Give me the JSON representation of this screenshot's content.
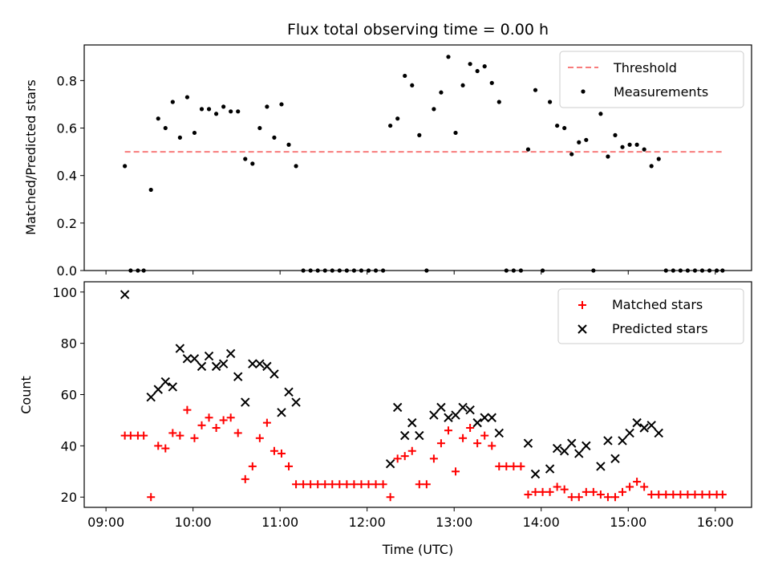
{
  "chart_data": [
    {
      "type": "scatter",
      "title": "Flux total observing time = 0.00 h",
      "xlabel": "",
      "ylabel": "Matched/Predicted stars",
      "xlim_minutes": [
        525,
        985
      ],
      "ylim": [
        0,
        0.95
      ],
      "yticks": [
        0.0,
        0.2,
        0.4,
        0.6,
        0.8
      ],
      "yticklabels": [
        "0.0",
        "0.2",
        "0.4",
        "0.6",
        "0.8"
      ],
      "legend_position": "upper right",
      "threshold": {
        "name": "Threshold",
        "value": 0.5,
        "x_range": [
          "09:13",
          "16:05"
        ],
        "color": "#f87c7c",
        "style": "dashed"
      },
      "series": [
        {
          "name": "Measurements",
          "color": "#000000",
          "marker": "dot",
          "points": [
            [
              "09:13",
              0.44
            ],
            [
              "09:17",
              0.0
            ],
            [
              "09:22",
              0.0
            ],
            [
              "09:26",
              0.0
            ],
            [
              "09:31",
              0.34
            ],
            [
              "09:36",
              0.64
            ],
            [
              "09:41",
              0.6
            ],
            [
              "09:46",
              0.71
            ],
            [
              "09:51",
              0.56
            ],
            [
              "09:56",
              0.73
            ],
            [
              "10:01",
              0.58
            ],
            [
              "10:06",
              0.68
            ],
            [
              "10:11",
              0.68
            ],
            [
              "10:16",
              0.66
            ],
            [
              "10:21",
              0.69
            ],
            [
              "10:26",
              0.67
            ],
            [
              "10:31",
              0.67
            ],
            [
              "10:36",
              0.47
            ],
            [
              "10:41",
              0.45
            ],
            [
              "10:46",
              0.6
            ],
            [
              "10:51",
              0.69
            ],
            [
              "10:56",
              0.56
            ],
            [
              "11:01",
              0.7
            ],
            [
              "11:06",
              0.53
            ],
            [
              "11:11",
              0.44
            ],
            [
              "11:16",
              0.0
            ],
            [
              "11:21",
              0.0
            ],
            [
              "11:26",
              0.0
            ],
            [
              "11:31",
              0.0
            ],
            [
              "11:36",
              0.0
            ],
            [
              "11:41",
              0.0
            ],
            [
              "11:46",
              0.0
            ],
            [
              "11:51",
              0.0
            ],
            [
              "11:56",
              0.0
            ],
            [
              "12:01",
              0.0
            ],
            [
              "12:06",
              0.0
            ],
            [
              "12:11",
              0.0
            ],
            [
              "12:16",
              0.61
            ],
            [
              "12:21",
              0.64
            ],
            [
              "12:26",
              0.82
            ],
            [
              "12:31",
              0.78
            ],
            [
              "12:36",
              0.57
            ],
            [
              "12:41",
              0.0
            ],
            [
              "12:46",
              0.68
            ],
            [
              "12:51",
              0.75
            ],
            [
              "12:56",
              0.9
            ],
            [
              "13:01",
              0.58
            ],
            [
              "13:06",
              0.78
            ],
            [
              "13:11",
              0.87
            ],
            [
              "13:16",
              0.84
            ],
            [
              "13:21",
              0.86
            ],
            [
              "13:26",
              0.79
            ],
            [
              "13:31",
              0.71
            ],
            [
              "13:36",
              0.0
            ],
            [
              "13:41",
              0.0
            ],
            [
              "13:46",
              0.0
            ],
            [
              "13:51",
              0.51
            ],
            [
              "13:56",
              0.76
            ],
            [
              "14:01",
              0.0
            ],
            [
              "14:06",
              0.71
            ],
            [
              "14:11",
              0.61
            ],
            [
              "14:16",
              0.6
            ],
            [
              "14:21",
              0.49
            ],
            [
              "14:26",
              0.54
            ],
            [
              "14:31",
              0.55
            ],
            [
              "14:36",
              0.0
            ],
            [
              "14:41",
              0.66
            ],
            [
              "14:46",
              0.48
            ],
            [
              "14:51",
              0.57
            ],
            [
              "14:56",
              0.52
            ],
            [
              "15:01",
              0.53
            ],
            [
              "15:06",
              0.53
            ],
            [
              "15:11",
              0.51
            ],
            [
              "15:16",
              0.44
            ],
            [
              "15:21",
              0.47
            ],
            [
              "15:26",
              0.0
            ],
            [
              "15:31",
              0.0
            ],
            [
              "15:36",
              0.0
            ],
            [
              "15:41",
              0.0
            ],
            [
              "15:46",
              0.0
            ],
            [
              "15:51",
              0.0
            ],
            [
              "15:56",
              0.0
            ],
            [
              "16:01",
              0.0
            ],
            [
              "16:05",
              0.0
            ]
          ]
        }
      ]
    },
    {
      "type": "scatter",
      "title": "",
      "xlabel": "Time (UTC)",
      "ylabel": "Count",
      "xlim_minutes": [
        525,
        985
      ],
      "ylim": [
        16,
        104
      ],
      "yticks": [
        20,
        40,
        60,
        80,
        100
      ],
      "yticklabels": [
        "20",
        "40",
        "60",
        "80",
        "100"
      ],
      "xticks": [
        "09:00",
        "10:00",
        "11:00",
        "12:00",
        "13:00",
        "14:00",
        "15:00",
        "16:00"
      ],
      "legend_position": "upper right",
      "series": [
        {
          "name": "Matched stars",
          "color": "#ff0000",
          "marker": "plus",
          "points": [
            [
              "09:13",
              44
            ],
            [
              "09:17",
              44
            ],
            [
              "09:22",
              44
            ],
            [
              "09:26",
              44
            ],
            [
              "09:31",
              20
            ],
            [
              "09:36",
              40
            ],
            [
              "09:41",
              39
            ],
            [
              "09:46",
              45
            ],
            [
              "09:51",
              44
            ],
            [
              "09:56",
              54
            ],
            [
              "10:01",
              43
            ],
            [
              "10:06",
              48
            ],
            [
              "10:11",
              51
            ],
            [
              "10:16",
              47
            ],
            [
              "10:21",
              50
            ],
            [
              "10:26",
              51
            ],
            [
              "10:31",
              45
            ],
            [
              "10:36",
              27
            ],
            [
              "10:41",
              32
            ],
            [
              "10:46",
              43
            ],
            [
              "10:51",
              49
            ],
            [
              "10:56",
              38
            ],
            [
              "11:01",
              37
            ],
            [
              "11:06",
              32
            ],
            [
              "11:11",
              25
            ],
            [
              "11:16",
              25
            ],
            [
              "11:21",
              25
            ],
            [
              "11:26",
              25
            ],
            [
              "11:31",
              25
            ],
            [
              "11:36",
              25
            ],
            [
              "11:41",
              25
            ],
            [
              "11:46",
              25
            ],
            [
              "11:51",
              25
            ],
            [
              "11:56",
              25
            ],
            [
              "12:01",
              25
            ],
            [
              "12:06",
              25
            ],
            [
              "12:11",
              25
            ],
            [
              "12:16",
              20
            ],
            [
              "12:21",
              35
            ],
            [
              "12:26",
              36
            ],
            [
              "12:31",
              38
            ],
            [
              "12:36",
              25
            ],
            [
              "12:41",
              25
            ],
            [
              "12:46",
              35
            ],
            [
              "12:51",
              41
            ],
            [
              "12:56",
              46
            ],
            [
              "13:01",
              30
            ],
            [
              "13:06",
              43
            ],
            [
              "13:11",
              47
            ],
            [
              "13:16",
              41
            ],
            [
              "13:21",
              44
            ],
            [
              "13:26",
              40
            ],
            [
              "13:31",
              32
            ],
            [
              "13:36",
              32
            ],
            [
              "13:41",
              32
            ],
            [
              "13:46",
              32
            ],
            [
              "13:51",
              21
            ],
            [
              "13:56",
              22
            ],
            [
              "14:01",
              22
            ],
            [
              "14:06",
              22
            ],
            [
              "14:11",
              24
            ],
            [
              "14:16",
              23
            ],
            [
              "14:21",
              20
            ],
            [
              "14:26",
              20
            ],
            [
              "14:31",
              22
            ],
            [
              "14:36",
              22
            ],
            [
              "14:41",
              21
            ],
            [
              "14:46",
              20
            ],
            [
              "14:51",
              20
            ],
            [
              "14:56",
              22
            ],
            [
              "15:01",
              24
            ],
            [
              "15:06",
              26
            ],
            [
              "15:11",
              24
            ],
            [
              "15:16",
              21
            ],
            [
              "15:21",
              21
            ],
            [
              "15:26",
              21
            ],
            [
              "15:31",
              21
            ],
            [
              "15:36",
              21
            ],
            [
              "15:41",
              21
            ],
            [
              "15:46",
              21
            ],
            [
              "15:51",
              21
            ],
            [
              "15:56",
              21
            ],
            [
              "16:01",
              21
            ],
            [
              "16:05",
              21
            ]
          ]
        },
        {
          "name": "Predicted stars",
          "color": "#000000",
          "marker": "x",
          "points": [
            [
              "09:13",
              99
            ],
            [
              "09:31",
              59
            ],
            [
              "09:36",
              62
            ],
            [
              "09:41",
              65
            ],
            [
              "09:46",
              63
            ],
            [
              "09:51",
              78
            ],
            [
              "09:56",
              74
            ],
            [
              "10:01",
              74
            ],
            [
              "10:06",
              71
            ],
            [
              "10:11",
              75
            ],
            [
              "10:16",
              71
            ],
            [
              "10:21",
              72
            ],
            [
              "10:26",
              76
            ],
            [
              "10:31",
              67
            ],
            [
              "10:36",
              57
            ],
            [
              "10:41",
              72
            ],
            [
              "10:46",
              72
            ],
            [
              "10:51",
              71
            ],
            [
              "10:56",
              68
            ],
            [
              "11:01",
              53
            ],
            [
              "11:06",
              61
            ],
            [
              "11:11",
              57
            ],
            [
              "12:16",
              33
            ],
            [
              "12:21",
              55
            ],
            [
              "12:26",
              44
            ],
            [
              "12:31",
              49
            ],
            [
              "12:36",
              44
            ],
            [
              "12:46",
              52
            ],
            [
              "12:51",
              55
            ],
            [
              "12:56",
              51
            ],
            [
              "13:01",
              52
            ],
            [
              "13:06",
              55
            ],
            [
              "13:11",
              54
            ],
            [
              "13:16",
              49
            ],
            [
              "13:21",
              51
            ],
            [
              "13:26",
              51
            ],
            [
              "13:31",
              45
            ],
            [
              "13:51",
              41
            ],
            [
              "13:56",
              29
            ],
            [
              "14:06",
              31
            ],
            [
              "14:11",
              39
            ],
            [
              "14:16",
              38
            ],
            [
              "14:21",
              41
            ],
            [
              "14:26",
              37
            ],
            [
              "14:31",
              40
            ],
            [
              "14:41",
              32
            ],
            [
              "14:46",
              42
            ],
            [
              "14:51",
              35
            ],
            [
              "14:56",
              42
            ],
            [
              "15:01",
              45
            ],
            [
              "15:06",
              49
            ],
            [
              "15:11",
              47
            ],
            [
              "15:16",
              48
            ],
            [
              "15:21",
              45
            ]
          ]
        }
      ]
    }
  ]
}
